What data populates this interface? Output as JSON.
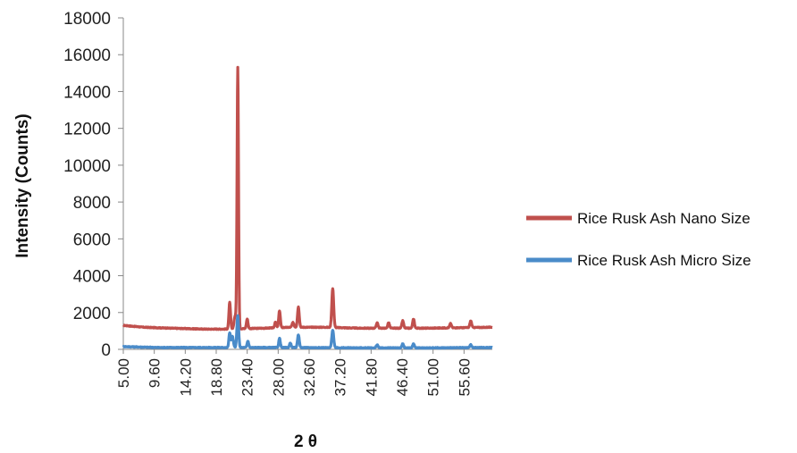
{
  "chart_data": {
    "type": "line",
    "title": "",
    "xlabel": "2 θ",
    "ylabel": "Intensity (Counts)",
    "ylim": [
      0,
      18000
    ],
    "y_ticks": [
      "0",
      "2000",
      "4000",
      "6000",
      "8000",
      "10000",
      "12000",
      "14000",
      "16000",
      "18000"
    ],
    "x_tick_labels": [
      "5.00",
      "9.60",
      "14.20",
      "18.80",
      "23.40",
      "28.00",
      "32.60",
      "37.20",
      "41.80",
      "46.40",
      "51.00",
      "55.60"
    ],
    "xlim": [
      5.0,
      59.8
    ],
    "grid": false,
    "legend_position": "right",
    "series": [
      {
        "name": "Rice Rusk Ash Nano Size",
        "color": "#c0504d",
        "baseline": [
          [
            5.0,
            1300
          ],
          [
            8.0,
            1200
          ],
          [
            12.0,
            1150
          ],
          [
            17.0,
            1100
          ],
          [
            20.0,
            1100
          ],
          [
            26.0,
            1150
          ],
          [
            30.0,
            1200
          ],
          [
            35.0,
            1200
          ],
          [
            40.0,
            1150
          ],
          [
            50.0,
            1150
          ],
          [
            59.8,
            1200
          ]
        ],
        "peaks": [
          {
            "x": 20.8,
            "y": 2550,
            "w": 0.12
          },
          {
            "x": 21.6,
            "y": 1800,
            "w": 0.15
          },
          {
            "x": 22.0,
            "y": 15300,
            "w": 0.11
          },
          {
            "x": 23.4,
            "y": 1650,
            "w": 0.12
          },
          {
            "x": 27.6,
            "y": 1500,
            "w": 0.12
          },
          {
            "x": 28.2,
            "y": 2100,
            "w": 0.12
          },
          {
            "x": 30.2,
            "y": 1450,
            "w": 0.14
          },
          {
            "x": 31.0,
            "y": 2300,
            "w": 0.13
          },
          {
            "x": 36.1,
            "y": 3300,
            "w": 0.14
          },
          {
            "x": 42.7,
            "y": 1450,
            "w": 0.13
          },
          {
            "x": 44.4,
            "y": 1450,
            "w": 0.13
          },
          {
            "x": 46.5,
            "y": 1550,
            "w": 0.13
          },
          {
            "x": 48.1,
            "y": 1650,
            "w": 0.13
          },
          {
            "x": 53.6,
            "y": 1400,
            "w": 0.13
          },
          {
            "x": 56.6,
            "y": 1550,
            "w": 0.13
          }
        ]
      },
      {
        "name": "Rice Rusk Ash Micro Size",
        "color": "#4a8bc9",
        "baseline": [
          [
            5.0,
            150
          ],
          [
            10.0,
            100
          ],
          [
            20.0,
            100
          ],
          [
            30.0,
            100
          ],
          [
            40.0,
            80
          ],
          [
            50.0,
            80
          ],
          [
            59.8,
            100
          ]
        ],
        "peaks": [
          {
            "x": 20.8,
            "y": 900,
            "w": 0.12
          },
          {
            "x": 21.2,
            "y": 700,
            "w": 0.14
          },
          {
            "x": 22.0,
            "y": 1850,
            "w": 0.13
          },
          {
            "x": 23.5,
            "y": 450,
            "w": 0.12
          },
          {
            "x": 28.2,
            "y": 600,
            "w": 0.12
          },
          {
            "x": 29.8,
            "y": 350,
            "w": 0.12
          },
          {
            "x": 31.0,
            "y": 800,
            "w": 0.13
          },
          {
            "x": 36.1,
            "y": 1050,
            "w": 0.14
          },
          {
            "x": 42.7,
            "y": 250,
            "w": 0.13
          },
          {
            "x": 46.5,
            "y": 300,
            "w": 0.13
          },
          {
            "x": 48.1,
            "y": 300,
            "w": 0.13
          },
          {
            "x": 56.6,
            "y": 250,
            "w": 0.13
          }
        ]
      }
    ]
  }
}
